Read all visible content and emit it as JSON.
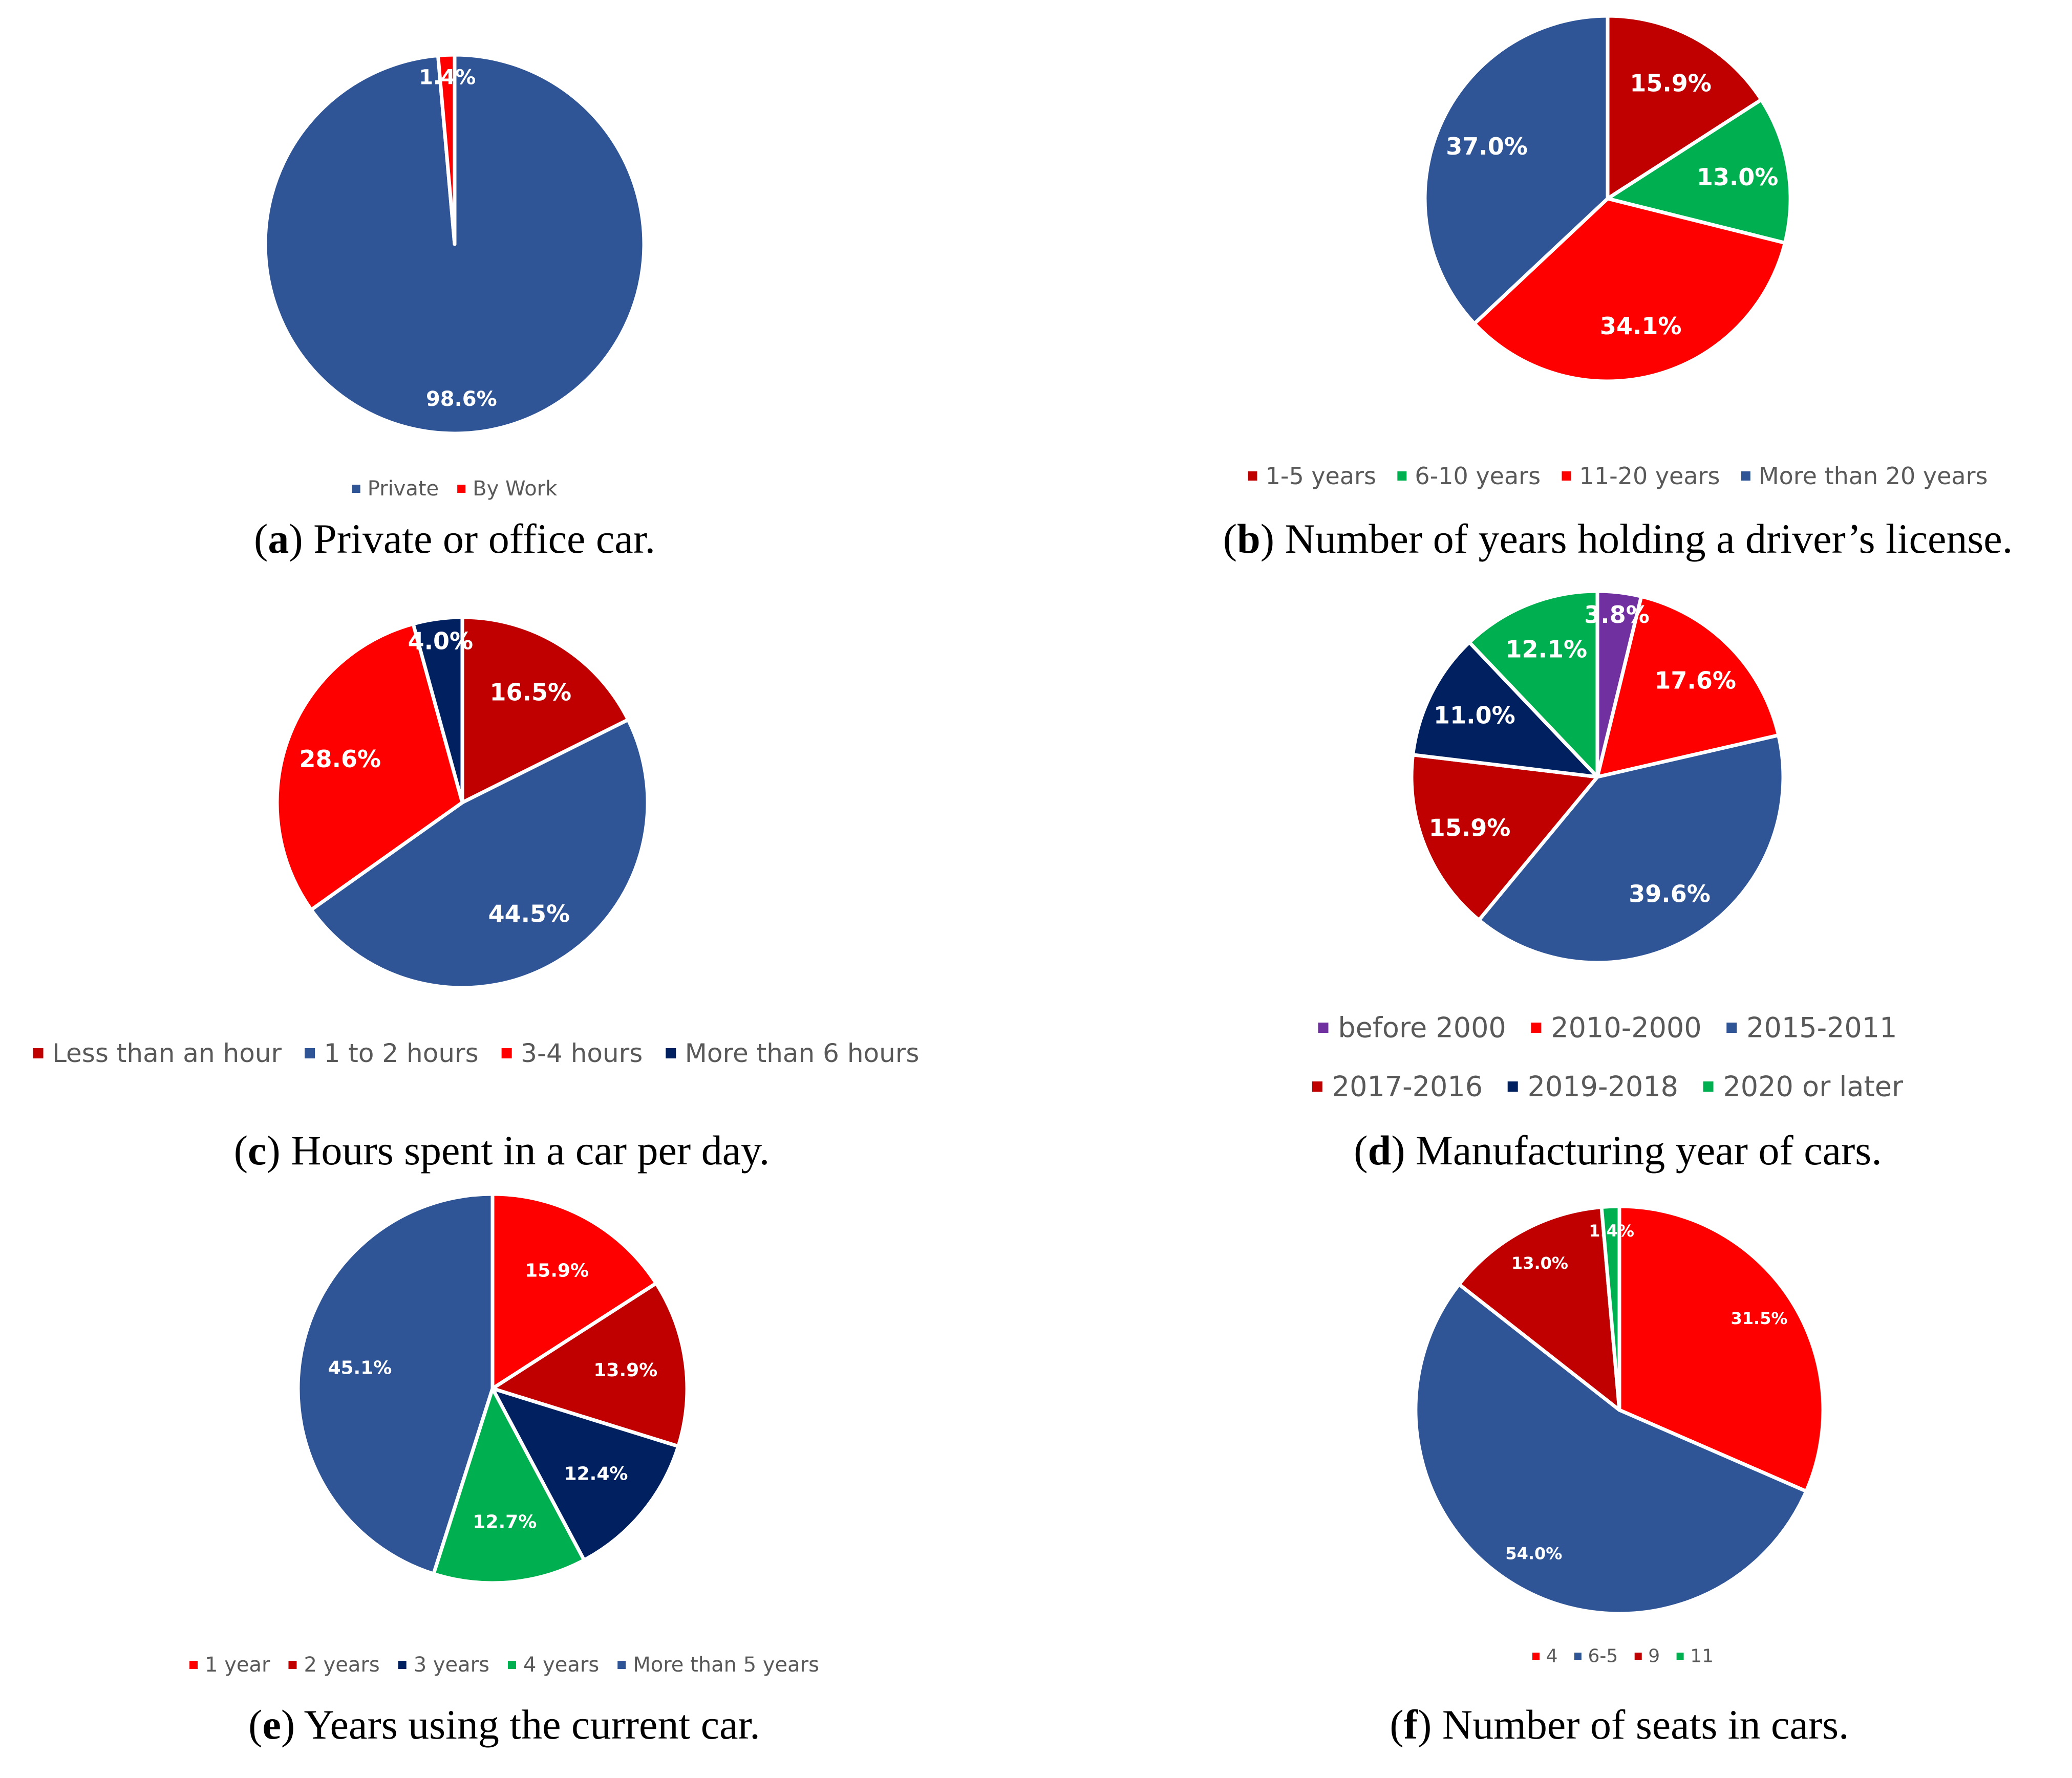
{
  "chart_data": [
    {
      "type": "pie",
      "panel": "a",
      "caption_label": "a",
      "caption_text": ") Private or office car.",
      "slices": [
        {
          "name": "Private",
          "value": 98.6,
          "label": "98.6%",
          "color": "#2F5597"
        },
        {
          "name": "By Work",
          "value": 1.4,
          "label": "1.4%",
          "color": "#FF0000"
        }
      ]
    },
    {
      "type": "pie",
      "panel": "b",
      "caption_label": "b",
      "caption_text": ") Number of years holding a driver’s license.",
      "slices": [
        {
          "name": "1-5 years",
          "value": 15.9,
          "label": "15.9%",
          "color": "#C00000"
        },
        {
          "name": "6-10 years",
          "value": 13.0,
          "label": "13.0%",
          "color": "#00B050"
        },
        {
          "name": "11-20 years",
          "value": 34.1,
          "label": "34.1%",
          "color": "#FF0000"
        },
        {
          "name": "More than 20 years",
          "value": 37.0,
          "label": "37.0%",
          "color": "#2F5597"
        }
      ]
    },
    {
      "type": "pie",
      "panel": "c",
      "caption_label": "c",
      "caption_text": ") Hours spent in a car per day.",
      "slices": [
        {
          "name": "Less than an hour",
          "value": 16.5,
          "label": "16.5%",
          "color": "#C00000"
        },
        {
          "name": "1 to 2 hours",
          "value": 44.5,
          "label": "44.5%",
          "color": "#2F5597"
        },
        {
          "name": "3-4 hours",
          "value": 28.6,
          "label": "28.6%",
          "color": "#FF0000"
        },
        {
          "name": "More than 6 hours",
          "value": 4.0,
          "label": "4.0%",
          "color": "#002060"
        }
      ]
    },
    {
      "type": "pie",
      "panel": "d",
      "caption_label": "d",
      "caption_text": ") Manufacturing year of cars.",
      "slices": [
        {
          "name": "before 2000",
          "value": 3.8,
          "label": "3.8%",
          "color": "#7030A0"
        },
        {
          "name": "2010-2000",
          "value": 17.6,
          "label": "17.6%",
          "color": "#FF0000"
        },
        {
          "name": "2015-2011",
          "value": 39.6,
          "label": "39.6%",
          "color": "#2F5597"
        },
        {
          "name": "2017-2016",
          "value": 15.9,
          "label": "15.9%",
          "color": "#C00000"
        },
        {
          "name": "2019-2018",
          "value": 11.0,
          "label": "11.0%",
          "color": "#002060"
        },
        {
          "name": "2020 or later",
          "value": 12.1,
          "label": "12.1%",
          "color": "#00B050"
        }
      ]
    },
    {
      "type": "pie",
      "panel": "e",
      "caption_label": "e",
      "caption_text": ") Years using the current car.",
      "slices": [
        {
          "name": "1 year",
          "value": 15.9,
          "label": "15.9%",
          "color": "#FF0000"
        },
        {
          "name": "2 years",
          "value": 13.9,
          "label": "13.9%",
          "color": "#C00000"
        },
        {
          "name": "3 years",
          "value": 12.4,
          "label": "12.4%",
          "color": "#002060"
        },
        {
          "name": "4 years",
          "value": 12.7,
          "label": "12.7%",
          "color": "#00B050"
        },
        {
          "name": "More than 5 years",
          "value": 45.1,
          "label": "45.1%",
          "color": "#2F5597"
        }
      ]
    },
    {
      "type": "pie",
      "panel": "f",
      "caption_label": "f",
      "caption_text": ") Number of seats in cars.",
      "slices": [
        {
          "name": "4",
          "value": 31.5,
          "label": "31.5%",
          "color": "#FF0000"
        },
        {
          "name": "6-5",
          "value": 54.0,
          "label": "54.0%",
          "color": "#2F5597"
        },
        {
          "name": "9",
          "value": 13.0,
          "label": "13.0%",
          "color": "#C00000"
        },
        {
          "name": "11",
          "value": 1.4,
          "label": "1.4%",
          "color": "#00B050"
        }
      ]
    }
  ]
}
